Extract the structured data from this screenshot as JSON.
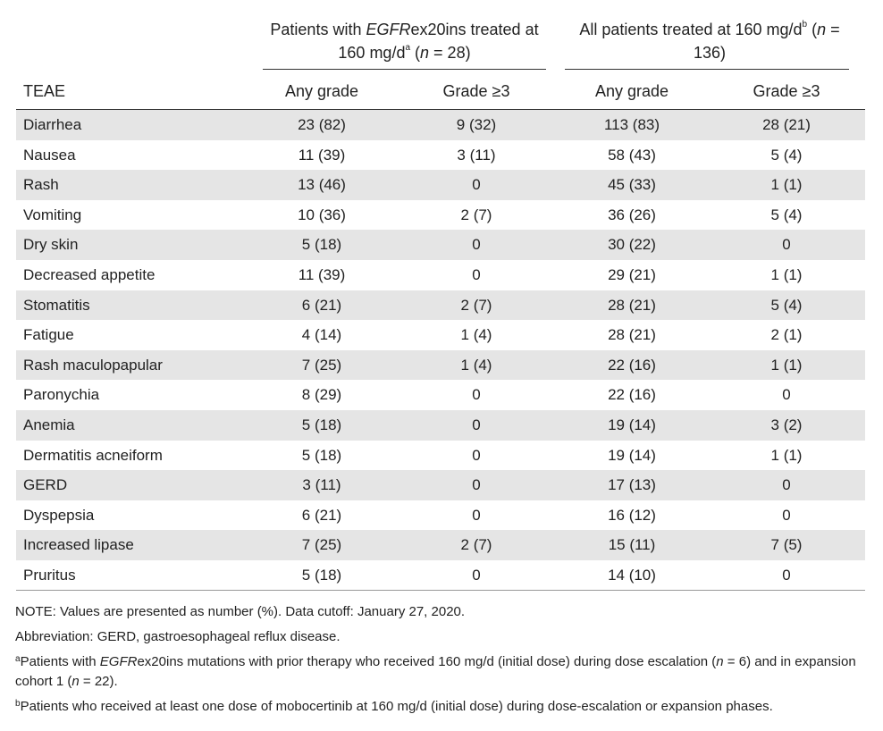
{
  "table": {
    "group_headers": [
      [
        "Patients with ",
        "EGFR",
        "ex20ins treated at 160 mg/d",
        "a",
        " (",
        "n",
        " = 28)"
      ],
      [
        "All patients treated at 160 mg/d",
        "b",
        " (",
        "n",
        " = 136)"
      ]
    ],
    "columns": [
      "TEAE",
      "Any grade",
      "Grade ≥3",
      "Any grade",
      "Grade ≥3"
    ],
    "rows": [
      [
        "Diarrhea",
        "23 (82)",
        "9 (32)",
        "113 (83)",
        "28 (21)"
      ],
      [
        "Nausea",
        "11 (39)",
        "3 (11)",
        "58 (43)",
        "5 (4)"
      ],
      [
        "Rash",
        "13 (46)",
        "0",
        "45 (33)",
        "1 (1)"
      ],
      [
        "Vomiting",
        "10 (36)",
        "2 (7)",
        "36 (26)",
        "5 (4)"
      ],
      [
        "Dry skin",
        "5 (18)",
        "0",
        "30 (22)",
        "0"
      ],
      [
        "Decreased appetite",
        "11 (39)",
        "0",
        "29 (21)",
        "1 (1)"
      ],
      [
        "Stomatitis",
        "6 (21)",
        "2 (7)",
        "28 (21)",
        "5 (4)"
      ],
      [
        "Fatigue",
        "4 (14)",
        "1 (4)",
        "28 (21)",
        "2 (1)"
      ],
      [
        "Rash maculopapular",
        "7 (25)",
        "1 (4)",
        "22 (16)",
        "1 (1)"
      ],
      [
        "Paronychia",
        "8 (29)",
        "0",
        "22 (16)",
        "0"
      ],
      [
        "Anemia",
        "5 (18)",
        "0",
        "19 (14)",
        "3 (2)"
      ],
      [
        "Dermatitis acneiform",
        "5 (18)",
        "0",
        "19 (14)",
        "1 (1)"
      ],
      [
        "GERD",
        "3 (11)",
        "0",
        "17 (13)",
        "0"
      ],
      [
        "Dyspepsia",
        "6 (21)",
        "0",
        "16 (12)",
        "0"
      ],
      [
        "Increased lipase",
        "7 (25)",
        "2 (7)",
        "15 (11)",
        "7 (5)"
      ],
      [
        "Pruritus",
        "5 (18)",
        "0",
        "14 (10)",
        "0"
      ]
    ]
  },
  "notes": [
    "NOTE: Values are presented as number (%). Data cutoff: January 27, 2020.",
    "Abbreviation: GERD, gastroesophageal reflux disease.",
    [
      "a",
      "Patients with ",
      "EGFR",
      "ex20ins mutations with prior therapy who received 160 mg/d (initial dose) during dose escalation (",
      "n",
      " = 6) and in expansion cohort 1 (",
      "n",
      " = 22)."
    ],
    [
      "b",
      "Patients who received at least one dose of mobocertinib at 160 mg/d (initial dose) during dose-escalation or expansion phases."
    ]
  ]
}
